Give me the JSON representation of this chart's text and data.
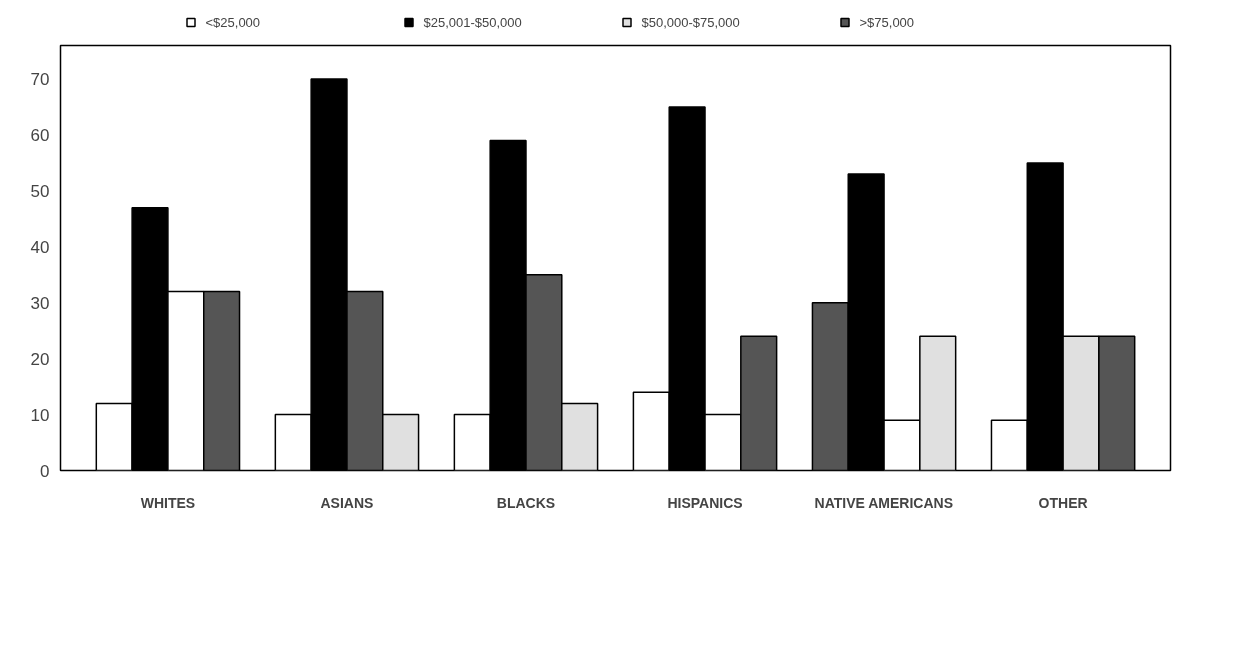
{
  "chart_data": {
    "type": "bar",
    "categories": [
      "WHITES",
      "ASIANS",
      "BLACKS",
      "HISPANICS",
      "NATIVE AMERICANS",
      "OTHER"
    ],
    "series": [
      {
        "name": "<$25,000",
        "color": "#ffffff",
        "values": [
          12,
          10,
          10,
          14,
          30,
          9
        ],
        "colors": [
          "#ffffff",
          "#ffffff",
          "#ffffff",
          "#ffffff",
          "#555555",
          "#ffffff"
        ]
      },
      {
        "name": "$25,001-$50,000",
        "color": "#000000",
        "values": [
          47,
          70,
          59,
          65,
          53,
          55
        ],
        "colors": [
          "#000000",
          "#000000",
          "#000000",
          "#000000",
          "#000000",
          "#000000"
        ]
      },
      {
        "name": "$50,000-$75,000",
        "color": "#e0e0e0",
        "values": [
          32,
          32,
          35,
          10,
          9,
          24
        ],
        "colors": [
          "#ffffff",
          "#555555",
          "#555555",
          "#ffffff",
          "#ffffff",
          "#e0e0e0"
        ]
      },
      {
        "name": ">$75,000",
        "color": "#555555",
        "values": [
          32,
          10,
          12,
          24,
          24,
          24
        ],
        "colors": [
          "#555555",
          "#e0e0e0",
          "#e0e0e0",
          "#555555",
          "#e0e0e0",
          "#555555"
        ]
      }
    ],
    "ylim": [
      0,
      76
    ],
    "yticks": [
      0,
      10,
      20,
      30,
      40,
      50,
      60,
      70
    ],
    "grid": false,
    "legend": "top"
  }
}
